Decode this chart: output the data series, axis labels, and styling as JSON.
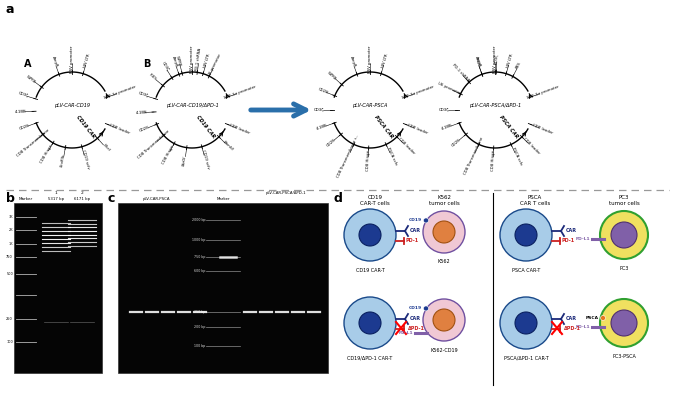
{
  "bg_color": "#ffffff",
  "plasmid_names": [
    "pLV-CAR-CD19",
    "pLV-CAR-CD19/ΔPD-1",
    "pLV-CAR-PSCA",
    "pLV-CAR-PSCA/ΔPD-1"
  ],
  "car_labels": [
    "CD19 CAR",
    "CD19 CAR",
    "PSCA CAR",
    "PSCA CAR"
  ],
  "arrow_color": "#2a6faa",
  "dashed_line_color": "#999999",
  "cell_blue_outer": "#a8cce8",
  "cell_blue_mid": "#6090c8",
  "cell_blue_inner": "#1c3a90",
  "cell_pink_outer": "#f0c8d4",
  "cell_pink_inner": "#e08040",
  "cell_yellow_outer": "#f0e060",
  "cell_yellow_inner": "#8060a8",
  "car_color": "#1c2a7a",
  "pd1_color": "#cc2020",
  "pdl1_color": "#8060a8",
  "cd19_color": "#1c3a90",
  "green_border": "#30a030",
  "orange_dot": "#e87820"
}
